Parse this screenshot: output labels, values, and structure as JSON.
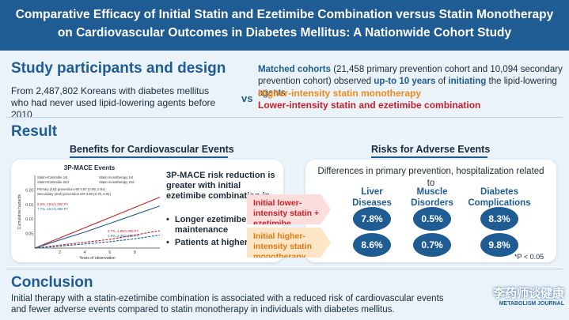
{
  "banner": {
    "line1": "Comparative Efficacy of Initial Statin and Ezetimibe Combination versus Statin Monotherapy",
    "line2": "on Cardiovascular Outcomes in Diabetes Mellitus: A Nationwide Cohort Study"
  },
  "participants": {
    "title": "Study participants and design",
    "text": "From 2,487,802 Koreans with diabetes mellitus who had never used lipid-lowering agents before 2010",
    "cohort_label": "Matched cohorts",
    "cohort_text_1": "(21,458 primary prevention cohort and 10,094 secondary prevention cohort) observed",
    "cohort_bold_1": "up-to 10 years",
    "cohort_text_2": "of",
    "cohort_bold_2": "initiating",
    "cohort_text_3": "the lipid-lowering agents",
    "vs": "vs",
    "arm_high": "Higher-intensity statin monotherapy",
    "arm_low": "Lower-intensity statin and ezetimibe combination"
  },
  "result": {
    "title": "Result",
    "benefits_title": "Benefits for Cardiovascular Events",
    "risks_title": "Risks for Adverse Events",
    "chart_title": "3P-MACE Events",
    "finding": "3P-MACE risk reduction is greater with initial ezetimibe combination in",
    "bullets": [
      "Longer ezetimibe maintenance",
      "Patients at higher risks"
    ],
    "risks_subtitle": "Differences in primary prevention, hospitalization related to",
    "arrow_low": "Initial lower-intensity statin + ezetimibe",
    "arrow_high": "Initial higher-intensity statin monotherapy",
    "columns": [
      {
        "name": "Liver Diseases",
        "low": "7.8%",
        "high": "8.6%"
      },
      {
        "name": "Muscle Disorders",
        "low": "0.5%",
        "high": "0.7%"
      },
      {
        "name": "Diabetes Complications",
        "low": "8.3%",
        "high": "9.8%"
      }
    ],
    "pnote": "*P < 0.05",
    "caret": "^"
  },
  "chart_data": {
    "type": "line",
    "title": "3P-MACE Events",
    "xlabel": "Years of observation",
    "ylabel": "Cumulative hazards",
    "xlim": [
      0,
      10
    ],
    "ylim": [
      0,
      0.25
    ],
    "x_ticks": [
      "2",
      "4",
      "6",
      "8"
    ],
    "y_ticks": [
      "0.05",
      "0.10",
      "0.15",
      "0.20"
    ],
    "legend": [
      "Statin+Ezetimibe 1st",
      "Statin monotherapy 1st",
      "Statin+Ezetimibe 2nd",
      "Statin monotherapy 2nd"
    ],
    "annotations": [
      "Primary (1st) prevention HR 0.87 (0.99, 0.91)",
      "Secondary (2nd) prevention HR 0.80 (0.70, 0.91)",
      "9.6%, 19.5/1,000 PY",
      "7.7%, 15.7/1,000 PY",
      "2.7%, 4.95/1,000 PY",
      "1.8%, 3.25/1,000 PY"
    ],
    "x": [
      0,
      2,
      4,
      6,
      8,
      10
    ],
    "series": [
      {
        "name": "Statin monotherapy 2nd",
        "values": [
          0,
          0.035,
          0.07,
          0.105,
          0.14,
          0.175
        ],
        "color": "#c7202a"
      },
      {
        "name": "Statin+Ezetimibe 2nd",
        "values": [
          0,
          0.028,
          0.055,
          0.085,
          0.115,
          0.145
        ],
        "color": "#1f5c93"
      },
      {
        "name": "Statin monotherapy 1st",
        "values": [
          0,
          0.01,
          0.02,
          0.03,
          0.045,
          0.06
        ],
        "color": "#c7202a"
      },
      {
        "name": "Statin+Ezetimibe 1st",
        "values": [
          0,
          0.007,
          0.014,
          0.022,
          0.032,
          0.045
        ],
        "color": "#1f5c93"
      }
    ]
  },
  "conclusion": {
    "title": "Conclusion",
    "text": "Initial therapy with a statin-ezetimibe combination is associated with a reduced risk of cardiovascular events and fewer adverse events compared to statin monotherapy in individuals with diabetes mellitus."
  },
  "logo": {
    "cn": "李药师谈健康",
    "en": "METABOLISM JOURNAL"
  }
}
